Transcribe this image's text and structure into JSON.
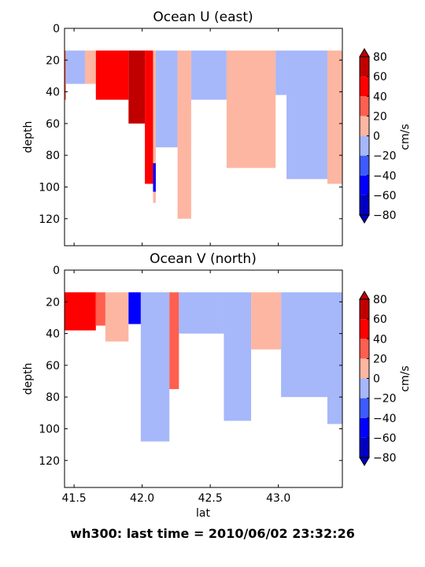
{
  "figure_caption": "wh300: last time = 2010/06/02 23:32:26",
  "shared": {
    "xlabel": "lat",
    "ylabel": "depth",
    "xlim": [
      41.43,
      43.47
    ],
    "ylim": [
      137,
      0
    ],
    "xticks": [
      41.5,
      42.0,
      42.5,
      43.0
    ],
    "xtick_labels": [
      "41.5",
      "42.0",
      "42.5",
      "43.0"
    ],
    "yticks": [
      0,
      20,
      40,
      60,
      80,
      100,
      120
    ],
    "ytick_labels": [
      "0",
      "20",
      "40",
      "60",
      "80",
      "100",
      "120"
    ]
  },
  "colorbar": {
    "label": "cm/s",
    "levels": [
      -80,
      -60,
      -40,
      -20,
      0,
      20,
      40,
      60,
      80
    ],
    "tick_labels": [
      "80",
      "60",
      "40",
      "20",
      "0",
      "−20",
      "−40",
      "−60",
      "−80"
    ],
    "colors": [
      "#0000c0",
      "#0000ff",
      "#3d5bff",
      "#a6b7fa",
      "#fdb6a1",
      "#ff5f4f",
      "#ff0000",
      "#c00000"
    ],
    "extend": "both"
  },
  "chart_data": [
    {
      "type": "contourf",
      "title": "Ocean U (east)",
      "xlabel": "",
      "ylabel": "depth",
      "xlim": [
        41.43,
        43.47
      ],
      "ylim": [
        137,
        0
      ],
      "depth_top": 14,
      "x_grid": [
        41.43,
        41.6,
        41.9,
        42.0,
        42.1,
        42.3,
        42.5,
        42.65,
        42.8,
        43.0,
        43.2,
        43.47
      ],
      "data_regions": [
        {
          "x": [
            41.43,
            41.44
          ],
          "depth": [
            14,
            45
          ],
          "value": 25
        },
        {
          "x": [
            41.44,
            41.58
          ],
          "depth": [
            14,
            35
          ],
          "value": -10
        },
        {
          "x": [
            41.58,
            41.66
          ],
          "depth": [
            14,
            35
          ],
          "value": 15
        },
        {
          "x": [
            41.66,
            41.9
          ],
          "depth": [
            14,
            45
          ],
          "value": 45
        },
        {
          "x": [
            41.9,
            42.02
          ],
          "depth": [
            14,
            60
          ],
          "value": 62
        },
        {
          "x": [
            42.02,
            42.08
          ],
          "depth": [
            14,
            98
          ],
          "value": 48
        },
        {
          "x": [
            42.08,
            42.1
          ],
          "depth": [
            14,
            110
          ],
          "value": 15
        },
        {
          "x": [
            42.08,
            42.1
          ],
          "depth": [
            85,
            103
          ],
          "value": -45
        },
        {
          "x": [
            42.1,
            42.26
          ],
          "depth": [
            14,
            75
          ],
          "value": -12
        },
        {
          "x": [
            42.26,
            42.36
          ],
          "depth": [
            14,
            120
          ],
          "value": 12
        },
        {
          "x": [
            42.36,
            42.62
          ],
          "depth": [
            14,
            45
          ],
          "value": -8
        },
        {
          "x": [
            42.62,
            42.98
          ],
          "depth": [
            14,
            88
          ],
          "value": 15
        },
        {
          "x": [
            42.98,
            43.06
          ],
          "depth": [
            14,
            42
          ],
          "value": -8
        },
        {
          "x": [
            43.06,
            43.36
          ],
          "depth": [
            14,
            95
          ],
          "value": -10
        },
        {
          "x": [
            43.36,
            43.47
          ],
          "depth": [
            14,
            98
          ],
          "value": 14
        }
      ]
    },
    {
      "type": "contourf",
      "title": "Ocean V (north)",
      "xlabel": "lat",
      "ylabel": "depth",
      "xlim": [
        41.43,
        43.47
      ],
      "ylim": [
        137,
        0
      ],
      "depth_top": 14,
      "x_grid": [
        41.43,
        41.6,
        41.9,
        42.0,
        42.1,
        42.3,
        42.5,
        42.65,
        42.8,
        43.0,
        43.2,
        43.47
      ],
      "data_regions": [
        {
          "x": [
            41.43,
            41.66
          ],
          "depth": [
            14,
            38
          ],
          "value": 55
        },
        {
          "x": [
            41.66,
            41.73
          ],
          "depth": [
            14,
            35
          ],
          "value": 20
        },
        {
          "x": [
            41.73,
            41.9
          ],
          "depth": [
            14,
            45
          ],
          "value": 12
        },
        {
          "x": [
            41.9,
            41.99
          ],
          "depth": [
            14,
            34
          ],
          "value": -45
        },
        {
          "x": [
            41.99,
            42.2
          ],
          "depth": [
            14,
            108
          ],
          "value": -10
        },
        {
          "x": [
            42.2,
            42.27
          ],
          "depth": [
            14,
            75
          ],
          "value": 28
        },
        {
          "x": [
            42.27,
            42.6
          ],
          "depth": [
            14,
            40
          ],
          "value": -12
        },
        {
          "x": [
            42.6,
            42.8
          ],
          "depth": [
            14,
            95
          ],
          "value": -10
        },
        {
          "x": [
            42.8,
            43.02
          ],
          "depth": [
            14,
            50
          ],
          "value": 10
        },
        {
          "x": [
            43.02,
            43.36
          ],
          "depth": [
            14,
            80
          ],
          "value": -10
        },
        {
          "x": [
            43.36,
            43.47
          ],
          "depth": [
            14,
            97
          ],
          "value": -10
        }
      ]
    }
  ]
}
